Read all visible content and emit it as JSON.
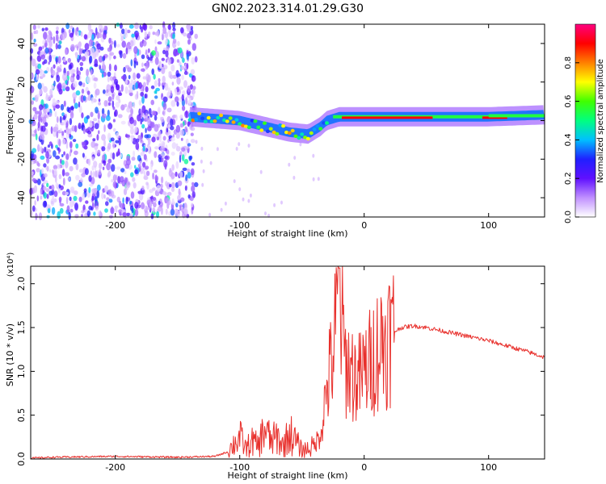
{
  "title": "GN02.2023.314.01.29.G30",
  "chart_data": [
    {
      "type": "heatmap",
      "xlabel": "Height of straight line (km)",
      "ylabel": "Frequency (Hz)",
      "xlim": [
        -268,
        145
      ],
      "ylim": [
        -50,
        50
      ],
      "x_ticks": [
        -200,
        -100,
        0,
        100
      ],
      "y_ticks": [
        -40,
        -20,
        0,
        20,
        40
      ],
      "colorbar": {
        "label": "Normalized spectral amplitude",
        "range": [
          0,
          1
        ],
        "ticks": [
          0.0,
          0.2,
          0.4,
          0.6,
          0.8
        ],
        "colors": [
          "#ffffff",
          "#c090ff",
          "#6010ff",
          "#2020ff",
          "#00c0ff",
          "#00ff80",
          "#40ff00",
          "#ffff00",
          "#ff8000",
          "#ff0000",
          "#ff0080"
        ]
      },
      "features": [
        {
          "name": "noise region",
          "x_range": [
            -268,
            -135
          ],
          "freq_range": [
            -50,
            50
          ],
          "amplitude": 0.15
        },
        {
          "name": "signal band",
          "points": [
            [
              -140,
              2
            ],
            [
              -120,
              1
            ],
            [
              -100,
              0
            ],
            [
              -80,
              -3
            ],
            [
              -60,
              -6
            ],
            [
              -45,
              -7
            ],
            [
              -35,
              -3
            ],
            [
              -30,
              0
            ],
            [
              -20,
              2
            ],
            [
              0,
              2
            ],
            [
              60,
              2
            ],
            [
              100,
              2
            ],
            [
              145,
              3
            ]
          ],
          "amplitude": 0.85
        }
      ]
    },
    {
      "type": "line",
      "xlabel": "Height of straight line (km)",
      "ylabel": "SNR (10 * v/v)",
      "y_multiplier": "(x10⁴)",
      "xlim": [
        -268,
        145
      ],
      "ylim": [
        0,
        2.2
      ],
      "x_ticks": [
        -200,
        -100,
        0,
        100
      ],
      "y_ticks": [
        0.0,
        0.5,
        1.0,
        1.5,
        2.0
      ],
      "series": [
        {
          "color": "#e8302c",
          "x": [
            -268,
            -250,
            -200,
            -150,
            -120,
            -110,
            -100,
            -95,
            -90,
            -85,
            -80,
            -75,
            -70,
            -65,
            -60,
            -55,
            -50,
            -45,
            -40,
            -35,
            -30,
            -25,
            -22,
            -20,
            -18,
            -15,
            -10,
            -5,
            0,
            5,
            10,
            20,
            30,
            40,
            50,
            60,
            70,
            80,
            90,
            100,
            110,
            120,
            130,
            145
          ],
          "y": [
            0.01,
            0.02,
            0.03,
            0.02,
            0.03,
            0.08,
            0.25,
            0.12,
            0.2,
            0.15,
            0.35,
            0.2,
            0.25,
            0.15,
            0.3,
            0.2,
            0.1,
            0.12,
            0.15,
            0.3,
            0.8,
            1.2,
            1.6,
            2.15,
            1.5,
            1.1,
            1.0,
            0.9,
            1.0,
            1.1,
            1.25,
            1.42,
            1.5,
            1.52,
            1.5,
            1.47,
            1.44,
            1.41,
            1.38,
            1.35,
            1.31,
            1.27,
            1.23,
            1.16
          ]
        }
      ]
    }
  ]
}
